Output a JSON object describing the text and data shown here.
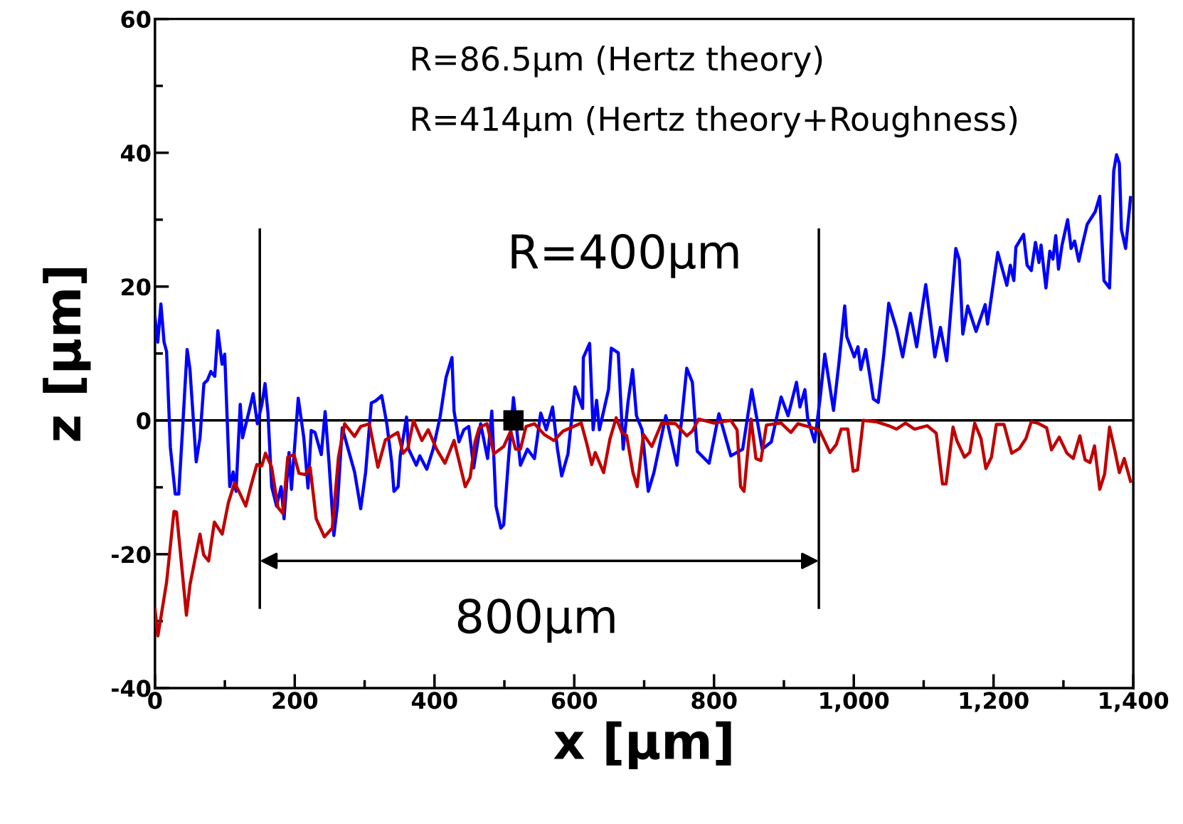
{
  "chart_data": {
    "type": "line",
    "xlabel": "x [µm]",
    "ylabel": "z [µm]",
    "xlim": [
      0,
      1400
    ],
    "ylim": [
      -40,
      60
    ],
    "xticks": [
      0,
      200,
      400,
      600,
      800,
      {
        "value": 1000,
        "label": "1,000"
      },
      {
        "value": 1200,
        "label": "1,200"
      },
      {
        "value": 1400,
        "label": "1,400"
      }
    ],
    "yticks": [
      -40,
      -20,
      0,
      20,
      40,
      60
    ],
    "grid": false,
    "legend": false,
    "marker": "none",
    "line_style": "solid",
    "series": [
      {
        "color": "#0000ff",
        "x": [
          0,
          4,
          8.5,
          13,
          16.6,
          22,
          29,
          34,
          39.6,
          46,
          50,
          59,
          64.4,
          70,
          75,
          80,
          85.6,
          90,
          96,
          99.8,
          107,
          112,
          116,
          122,
          125.3,
          134.5,
          140.5,
          146.5,
          153,
          157.5,
          161.7,
          167,
          174,
          180.5,
          184.7,
          191.8,
          195.3,
          205,
          213,
          219,
          223.6,
          229,
          238,
          243.5,
          249,
          256,
          261,
          268,
          276.7,
          285.6,
          294.4,
          301.5,
          309.6,
          315.6,
          324.5,
          331.6,
          338.7,
          342,
          348,
          351,
          360,
          363,
          374,
          379,
          389,
          398,
          408,
          416.5,
          425,
          428,
          435,
          442,
          449,
          456,
          466,
          476,
          482,
          488,
          495,
          499,
          505.5,
          513,
          523,
          533,
          543,
          552,
          560,
          569,
          576,
          582,
          591,
          601,
          612,
          613,
          622,
          627,
          632,
          636,
          649,
          653,
          663,
          670,
          677,
          683.5,
          689,
          697,
          706,
          714,
          731,
          747,
          761,
          769,
          776,
          793,
          807,
          824,
          841,
          854,
          869,
          882,
          896,
          906,
          918,
          923,
          930,
          934,
          944,
          952,
          958.5,
          971,
          978.6,
          987,
          990,
          1000.7,
          1006,
          1010,
          1017,
          1023,
          1028,
          1035,
          1043,
          1050,
          1061,
          1070,
          1081,
          1090,
          1103,
          1116,
          1124,
          1133,
          1146,
          1151,
          1156,
          1163,
          1175,
          1188,
          1191.4,
          1206,
          1219,
          1224,
          1229,
          1232,
          1243,
          1248,
          1254,
          1260,
          1265,
          1268,
          1275,
          1280.5,
          1285,
          1289,
          1293,
          1298,
          1306,
          1311,
          1316,
          1322,
          1327,
          1334,
          1345.5,
          1352,
          1358,
          1366,
          1372,
          1376,
          1380,
          1383,
          1389,
          1396
        ],
        "values": [
          15.4,
          11.7,
          17.4,
          11.7,
          10.3,
          -4,
          -11,
          -11,
          -1.1,
          10.6,
          7.7,
          -6.2,
          -2.6,
          5.5,
          6,
          7.3,
          6.6,
          13.4,
          8.4,
          9.9,
          -9.9,
          -7.7,
          -10.6,
          2.4,
          -2.6,
          1.3,
          4,
          -0.5,
          2.4,
          5.5,
          1.1,
          -9.9,
          -12.8,
          -9.9,
          -14.7,
          -4.8,
          -10.3,
          3.3,
          -2.6,
          -10.1,
          -1.5,
          -1.8,
          -5.1,
          1.3,
          -6.2,
          -17.2,
          -12.8,
          -1.1,
          -4.4,
          -7.7,
          -13.2,
          -7.7,
          2.6,
          2.9,
          3.7,
          -0.4,
          -6.2,
          -10.6,
          -9.9,
          -5.3,
          0.5,
          -4.3,
          -6.7,
          -5.3,
          -7.3,
          -4.3,
          0.5,
          6.4,
          9.4,
          1.4,
          -3.2,
          -1.4,
          -0.9,
          -7.1,
          -0.5,
          -5.7,
          1.4,
          -12.8,
          -16.1,
          -15.6,
          -6.4,
          3.4,
          -6.7,
          -4.3,
          -5.7,
          1.1,
          -1.4,
          2,
          -4.3,
          -8.3,
          -5,
          5,
          1.8,
          9.4,
          11.5,
          -1.4,
          3,
          -1.4,
          4.6,
          10.8,
          10.1,
          -4.3,
          2.8,
          7.6,
          0.7,
          -1.4,
          -10.6,
          -7.8,
          0.7,
          -6.7,
          7.8,
          5.7,
          -4.6,
          -6.4,
          1,
          -5.3,
          -4.3,
          4.6,
          -4.3,
          -3.2,
          3.5,
          0.7,
          5.7,
          2,
          4.6,
          0.3,
          -3.2,
          3.5,
          9.9,
          1.5,
          8.4,
          17.1,
          12.5,
          9.5,
          11,
          7.6,
          10.6,
          6.7,
          3.2,
          2.7,
          9.9,
          17.5,
          13.7,
          9.5,
          16,
          11,
          20.3,
          9.5,
          13.9,
          8.9,
          25.7,
          24,
          12.9,
          17.1,
          13.3,
          17.3,
          14.4,
          25.1,
          20.2,
          23.2,
          20.9,
          25.9,
          27.8,
          23.2,
          22.4,
          26.6,
          23.6,
          26.2,
          19.8,
          25.3,
          24.1,
          27.6,
          22.6,
          26.2,
          30,
          25.7,
          26.8,
          23.8,
          26.2,
          29.3,
          31.2,
          33.5,
          20.9,
          19.8,
          37.3,
          39.7,
          38.4,
          28.5,
          25.7,
          33.3
        ]
      },
      {
        "color": "#c00000",
        "x": [
          0,
          4.2,
          16.6,
          27.2,
          30.8,
          45,
          50.2,
          64.4,
          69.7,
          76.8,
          85,
          96.2,
          105,
          114,
          121,
          129.9,
          137,
          145.8,
          152.9,
          158.2,
          167,
          176,
          183,
          190,
          199,
          206,
          215,
          222,
          230.7,
          242.4,
          253.7,
          262.6,
          271.4,
          285.6,
          294.4,
          306.8,
          319,
          329.8,
          347.5,
          355,
          362,
          370,
          382,
          391,
          403,
          415,
          428,
          444,
          451,
          458,
          464,
          475,
          485,
          499,
          509,
          516,
          523,
          531,
          543,
          557,
          571,
          584,
          595,
          610,
          618,
          625,
          630,
          642,
          651,
          660,
          668,
          675,
          684,
          690,
          699,
          711,
          725,
          745,
          761,
          769,
          778,
          800,
          824,
          833,
          838,
          843,
          848,
          853,
          860,
          867,
          875,
          896,
          910,
          920,
          937,
          951,
          966,
          975,
          982,
          991.5,
          999,
          1005.4,
          1013.5,
          1032,
          1050,
          1061,
          1074,
          1087,
          1105,
          1118,
          1127,
          1132,
          1142,
          1147.4,
          1158.4,
          1166,
          1173,
          1182,
          1189,
          1197,
          1204,
          1215,
          1226,
          1237,
          1246.4,
          1254,
          1263,
          1276,
          1283,
          1294,
          1305,
          1314,
          1323.5,
          1331,
          1338,
          1344.5,
          1352,
          1359,
          1366,
          1373.7,
          1380,
          1387,
          1396
        ],
        "values": [
          -28.2,
          -32.2,
          -24.2,
          -13.6,
          -13.7,
          -29.1,
          -24.5,
          -17,
          -20.1,
          -21,
          -15.2,
          -17,
          -12.3,
          -9.3,
          -10.8,
          -12.8,
          -9.9,
          -6.6,
          -6.8,
          -4.9,
          -7,
          -13,
          -13.9,
          -5.5,
          -5.1,
          -7.9,
          -8.1,
          -7,
          -14.7,
          -17.4,
          -16.1,
          -5.5,
          -0.5,
          -2.4,
          -0.9,
          -0.5,
          -7,
          -2.9,
          -1.8,
          -4.9,
          -4.1,
          0,
          -3,
          -1.4,
          -4.3,
          -6.4,
          -3,
          -9.9,
          -8.5,
          -3.2,
          -1.1,
          -0.5,
          -5,
          -3.9,
          -1.6,
          -4.3,
          -4.3,
          -0.9,
          -0.5,
          -2.1,
          -3,
          -1.6,
          -1.1,
          -0.4,
          -3.5,
          -6.6,
          -4.8,
          -7.8,
          -2.8,
          0.4,
          -1.8,
          -2.3,
          -7.8,
          -9.9,
          -2.1,
          -3.9,
          -0.4,
          -0.5,
          -2.3,
          -1.6,
          0.2,
          -0.4,
          0,
          -1.4,
          -9.9,
          -10.6,
          -5,
          0.2,
          -5.7,
          -6,
          -0.7,
          -0.4,
          -1.8,
          -0.5,
          -1,
          -1.5,
          -4.8,
          -3.6,
          -1.3,
          -1.3,
          -7.6,
          -7.4,
          0,
          -0.2,
          -0.8,
          -1.3,
          -0.4,
          -1.3,
          -0.8,
          -1.9,
          -9.5,
          -9.5,
          -1,
          -3,
          -5.5,
          -4.8,
          -0.4,
          -2.7,
          -7.2,
          -5.5,
          -0.6,
          -0.6,
          -4.9,
          -4.2,
          -2.7,
          -0.2,
          -0.4,
          -1.1,
          -4.4,
          -2.5,
          -4.9,
          -5.7,
          -2.3,
          -5.9,
          -6.3,
          -3.8,
          -10.3,
          -8,
          -1,
          -4.6,
          -7.8,
          -5.7,
          -9.1
        ]
      },
      {
        "type": "scatter",
        "marker": "square",
        "color": "#000000",
        "x": [
          513
        ],
        "values": [
          0
        ]
      }
    ],
    "ref_lines": [
      {
        "axis": "x",
        "value": 150,
        "color": "#000000"
      },
      {
        "axis": "x",
        "value": 950,
        "color": "#000000"
      },
      {
        "axis": "y",
        "value": 0,
        "color": "#000000"
      }
    ],
    "annotations": [
      "R=86.5µm (Hertz theory)",
      "R=414µm (Hertz theory+Roughness)",
      "R=400µm",
      "800µm"
    ]
  }
}
